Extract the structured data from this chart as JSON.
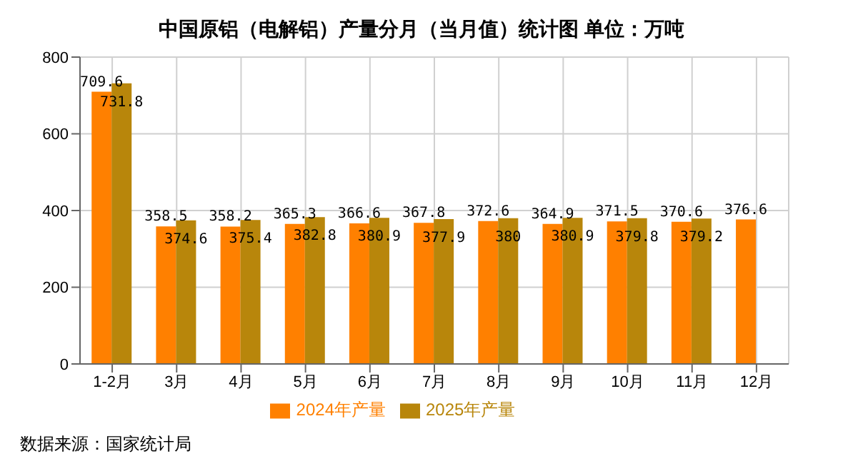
{
  "chart_data": {
    "type": "bar",
    "title": "中国原铝（电解铝）产量分月（当月值）统计图 单位：万吨",
    "categories": [
      "1-2月",
      "3月",
      "4月",
      "5月",
      "6月",
      "7月",
      "8月",
      "9月",
      "10月",
      "11月",
      "12月"
    ],
    "series": [
      {
        "name": "2024年产量",
        "color": "#ff8000",
        "values": [
          709.6,
          358.5,
          358.2,
          365.3,
          366.6,
          367.8,
          372.6,
          364.9,
          371.5,
          370.6,
          376.6
        ]
      },
      {
        "name": "2025年产量",
        "color": "#b8860b",
        "values": [
          731.8,
          374.6,
          375.4,
          382.8,
          380.9,
          377.9,
          380,
          380.9,
          379.8,
          379.2,
          null
        ]
      }
    ],
    "ylim": [
      0,
      800
    ],
    "yticks": [
      0,
      200,
      400,
      600,
      800
    ],
    "grid": true,
    "legend": "bottom",
    "data_labels": true,
    "annotations": [
      "数据来源：国家统计局"
    ]
  }
}
